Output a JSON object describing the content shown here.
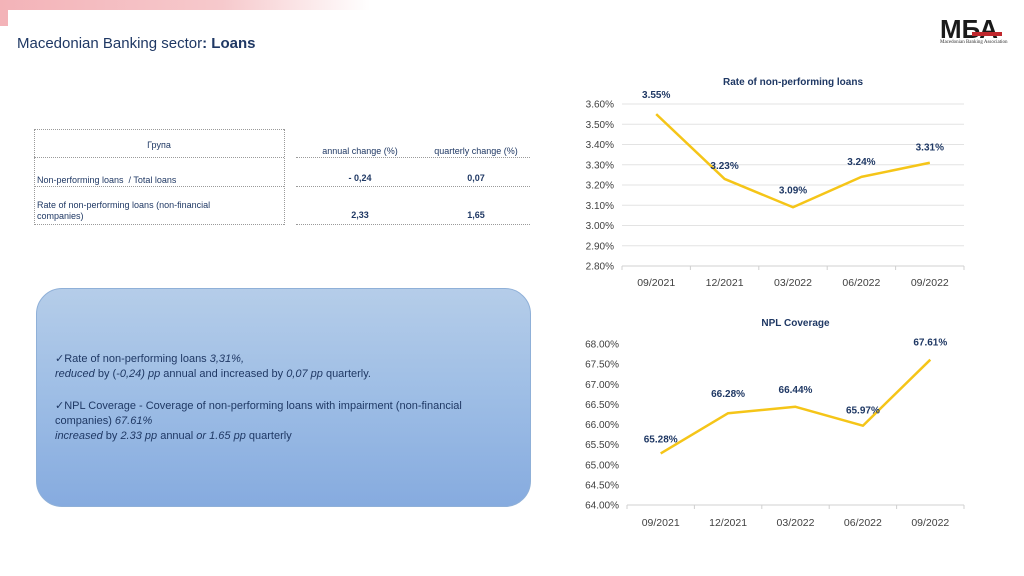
{
  "header": {
    "title_prefix": "Macedonian Banking sector",
    "title_colon": ": ",
    "title_bold": "Loans"
  },
  "logo": {
    "mark": "МБА",
    "caption": "Macedonian Banking Association"
  },
  "table": {
    "col_group": "Група",
    "col_annual": "annual change (%)",
    "col_quarterly": "quarterly change (%)",
    "rows": [
      {
        "label": "Non-performing loans  / Total loans",
        "annual": "- 0,24",
        "quarterly": "0,07"
      },
      {
        "label_line1": "Rate of non-performing loans (non-financial",
        "label_line2": "companies)",
        "annual": "2,33",
        "quarterly": "1,65"
      }
    ]
  },
  "summary": {
    "item1": {
      "check": "✓",
      "lead": "Rate of non-performing loans ",
      "value": "3,31%,",
      "line2_a": "reduced",
      "line2_b": " by (",
      "line2_c": "-0,24) pp",
      "line2_d": " annual and increased by ",
      "line2_e": "0,07 pp",
      "line2_f": " quarterly."
    },
    "item2": {
      "check": "✓",
      "lead": "NPL Coverage - Coverage of non-performing loans with impairment (non-financial",
      "line2_a": "companies) ",
      "line2_b": "67.61%",
      "line3_a": "increased",
      "line3_b": " by ",
      "line3_c": "2.33 pp",
      "line3_d": " annual ",
      "line3_e": "or 1.65 pp",
      "line3_f": " quarterly"
    }
  },
  "chart_data": [
    {
      "type": "line",
      "title": "Rate of non-performing loans",
      "x": [
        "09/2021",
        "12/2021",
        "03/2022",
        "06/2022",
        "09/2022"
      ],
      "values": [
        3.55,
        3.23,
        3.09,
        3.24,
        3.31
      ],
      "data_labels": [
        "3.55%",
        "3.23%",
        "3.09%",
        "3.24%",
        "3.31%"
      ],
      "ylim": [
        2.8,
        3.6
      ],
      "yticks": [
        2.8,
        2.9,
        3.0,
        3.1,
        3.2,
        3.3,
        3.4,
        3.5,
        3.6
      ],
      "ytick_labels": [
        "2.80%",
        "2.90%",
        "3.00%",
        "3.10%",
        "3.20%",
        "3.30%",
        "3.40%",
        "3.50%",
        "3.60%"
      ],
      "grid": true,
      "color": "#f5c518"
    },
    {
      "type": "line",
      "title": "NPL Coverage",
      "x": [
        "09/2021",
        "12/2021",
        "03/2022",
        "06/2022",
        "09/2022"
      ],
      "values": [
        65.28,
        66.28,
        66.44,
        65.97,
        67.61
      ],
      "data_labels": [
        "65.28%",
        "66.28%",
        "66.44%",
        "65.97%",
        "67.61%"
      ],
      "ylim": [
        64.0,
        68.0
      ],
      "yticks": [
        64.0,
        64.5,
        65.0,
        65.5,
        66.0,
        66.5,
        67.0,
        67.5,
        68.0
      ],
      "ytick_labels": [
        "64.00%",
        "64.50%",
        "65.00%",
        "65.50%",
        "66.00%",
        "66.50%",
        "67.00%",
        "67.50%",
        "68.00%"
      ],
      "grid": false,
      "color": "#f5c518"
    }
  ]
}
